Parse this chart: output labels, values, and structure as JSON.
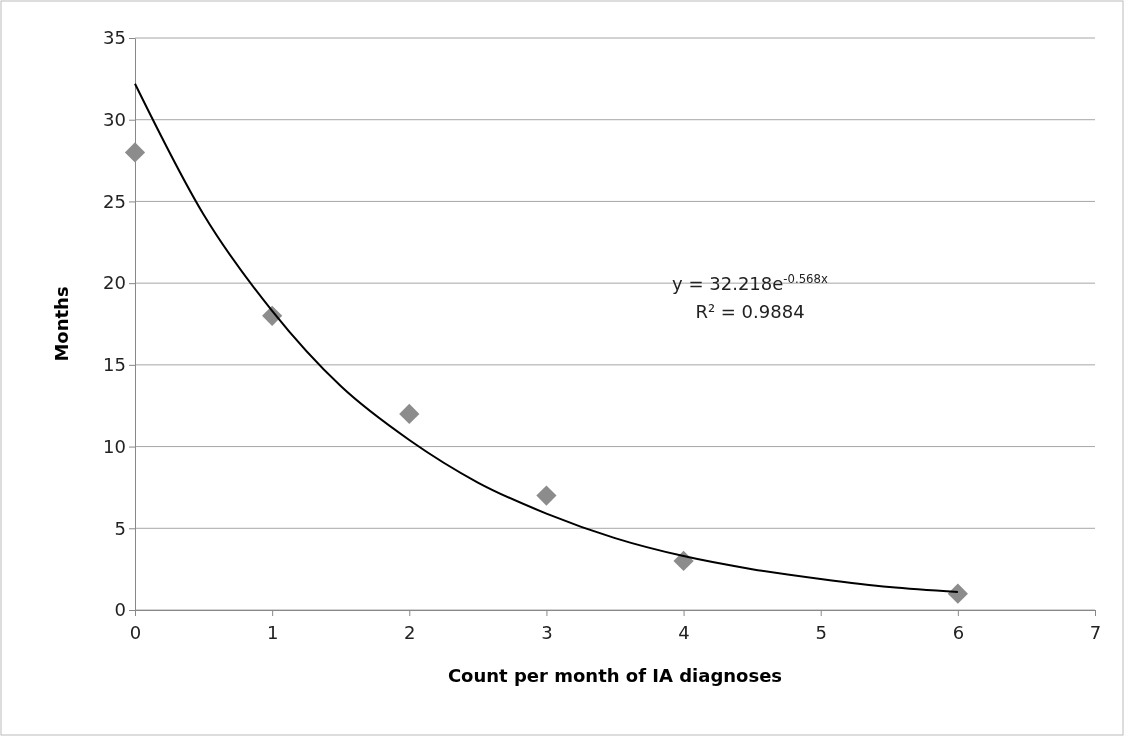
{
  "chart_data": {
    "type": "scatter",
    "xlabel": "Count per month of IA diagnoses",
    "ylabel": "Months",
    "xlim": [
      0,
      7
    ],
    "xticks": [
      0,
      1,
      2,
      3,
      4,
      5,
      6,
      7
    ],
    "ylim": [
      0,
      35
    ],
    "yticks": [
      0,
      5,
      10,
      15,
      20,
      25,
      30,
      35
    ],
    "grid": "y",
    "series": [
      {
        "color": "#8c8c8c",
        "marker": "diamond",
        "x": [
          0,
          1,
          2,
          3,
          4,
          6
        ],
        "values": [
          28,
          18,
          12,
          7,
          3,
          1
        ]
      },
      {
        "type": "line",
        "color": "#000000",
        "marker": "none",
        "line_style": "solid",
        "x": [
          0,
          0.5,
          1,
          1.5,
          2,
          2.5,
          3,
          3.5,
          4,
          4.5,
          5,
          5.5,
          6
        ],
        "values": [
          32.2,
          24.2,
          18.3,
          13.7,
          10.4,
          7.8,
          5.9,
          4.4,
          3.3,
          2.5,
          1.9,
          1.4,
          1.1
        ]
      }
    ],
    "annotations": [
      "y = 32.218e$^{-0.568x}$",
      "R² = 0.9884"
    ]
  }
}
